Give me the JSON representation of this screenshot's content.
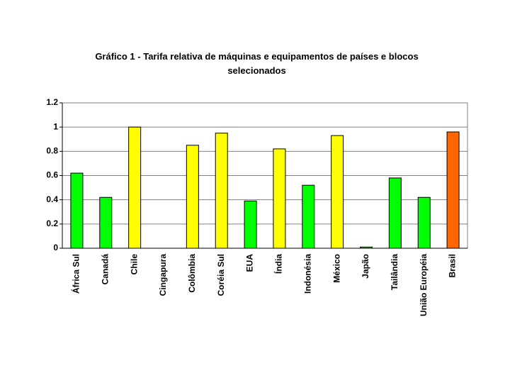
{
  "chart_data": {
    "type": "bar",
    "title": "Gráfico 1 - Tarifa relativa de máquinas e equipamentos de países e blocos selecionados",
    "categories": [
      "África Sul",
      "Canadá",
      "Chile",
      "Cingapura",
      "Colômbia",
      "Coréia Sul",
      "EUA",
      "Índia",
      "Indonésia",
      "México",
      "Japão",
      "Tailândia",
      "União Européia",
      "Brasil"
    ],
    "values": [
      0.62,
      0.42,
      1.0,
      0,
      0.85,
      0.95,
      0.39,
      0.82,
      0.52,
      0.93,
      0.01,
      0.58,
      0.42,
      0.96
    ],
    "colors": [
      "#00ff00",
      "#00ff00",
      "#ffff00",
      "#00ff00",
      "#ffff00",
      "#ffff00",
      "#00ff00",
      "#ffff00",
      "#00ff00",
      "#ffff00",
      "#00ff00",
      "#00ff00",
      "#00ff00",
      "#ff6600"
    ],
    "ylim": [
      0,
      1.2
    ],
    "yticks": [
      0,
      0.2,
      0.4,
      0.6,
      0.8,
      1,
      1.2
    ],
    "grid": true
  }
}
